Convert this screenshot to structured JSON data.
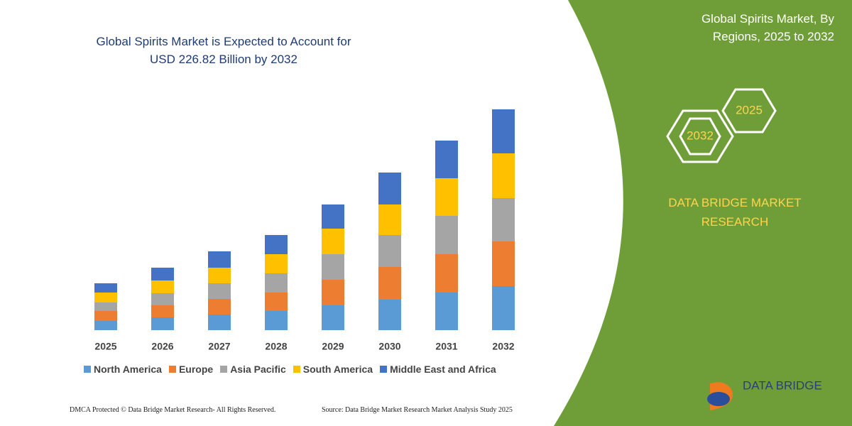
{
  "chart_data": {
    "type": "stacked-bar",
    "title": "Global Spirits Market is Expected to Account for USD 226.82 Billion by 2032",
    "categories": [
      "2025",
      "2026",
      "2027",
      "2028",
      "2029",
      "2030",
      "2031",
      "2032"
    ],
    "series": [
      {
        "name": "North America",
        "color": "#5b9bd5",
        "values": [
          13,
          18,
          22,
          27,
          35,
          43,
          53,
          62
        ]
      },
      {
        "name": "Europe",
        "color": "#ed7d31",
        "values": [
          14,
          17,
          22,
          26,
          36,
          46,
          54,
          63
        ]
      },
      {
        "name": "Asia Pacific",
        "color": "#a5a5a5",
        "values": [
          12,
          17,
          22,
          27,
          36,
          45,
          54,
          61
        ]
      },
      {
        "name": "South America",
        "color": "#ffc000",
        "values": [
          14,
          18,
          22,
          27,
          36,
          43,
          53,
          63
        ]
      },
      {
        "name": "Middle East and Africa",
        "color": "#4472c4",
        "values": [
          13,
          18,
          23,
          27,
          34,
          45,
          53,
          62
        ]
      }
    ]
  },
  "panel": {
    "title": "Global Spirits Market, By Regions, 2025 to 2032",
    "badges": [
      "2032",
      "2025"
    ],
    "brand": "DATA BRIDGE MARKET RESEARCH",
    "logo": "DATA BRIDGE"
  },
  "footer": {
    "rights": "DMCA Protected © Data Bridge Market Research- All Rights Reserved.",
    "source": "Source: Data Bridge Market Research Market Analysis Study 2025"
  }
}
